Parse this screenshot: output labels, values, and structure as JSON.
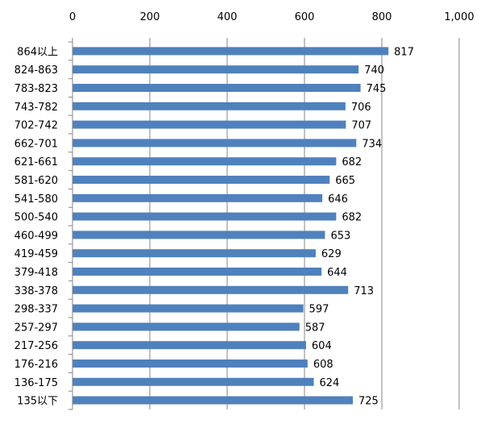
{
  "chart_data": {
    "type": "bar",
    "orientation": "horizontal",
    "categories": [
      "864以上",
      "824-863",
      "783-823",
      "743-782",
      "702-742",
      "662-701",
      "621-661",
      "581-620",
      "541-580",
      "500-540",
      "460-499",
      "419-459",
      "379-418",
      "338-378",
      "298-337",
      "257-297",
      "217-256",
      "176-216",
      "136-175",
      "135以下"
    ],
    "values": [
      817,
      740,
      745,
      706,
      707,
      734,
      682,
      665,
      646,
      682,
      653,
      629,
      644,
      713,
      597,
      587,
      604,
      608,
      624,
      725
    ],
    "data_labels": [
      "817",
      "740",
      "745",
      "706",
      "707",
      "734",
      "682",
      "665",
      "646",
      "682",
      "653",
      "629",
      "644",
      "713",
      "597",
      "587",
      "604",
      "608",
      "624",
      "725"
    ],
    "xlim": [
      0,
      1000
    ],
    "x_ticks": [
      0,
      200,
      400,
      600,
      800,
      1000
    ],
    "x_tick_labels": [
      "0",
      "200",
      "400",
      "600",
      "800",
      "1,000"
    ],
    "x_axis_position": "top",
    "grid": true,
    "legend": "none",
    "bar_color": "#4f81bd",
    "grid_color": "#868686",
    "axis_color": "#868686"
  }
}
